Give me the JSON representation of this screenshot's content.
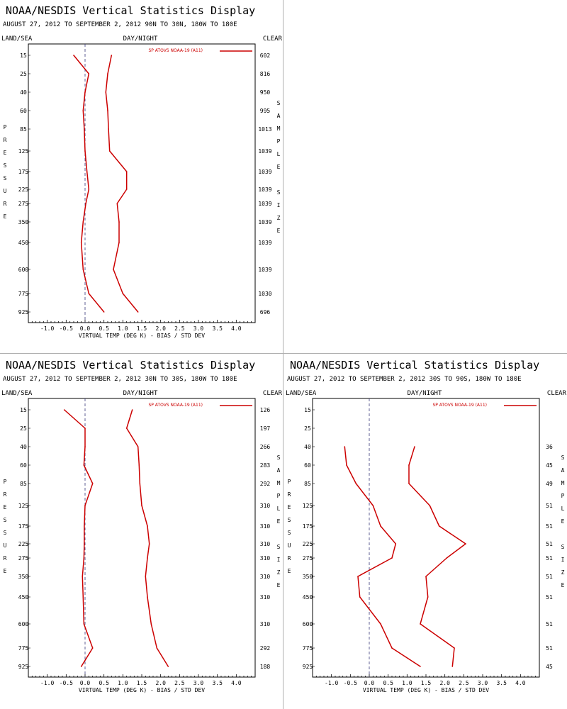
{
  "chart_data": [
    {
      "type": "line",
      "title": "NOAA/NESDIS Vertical Statistics Display",
      "subtitle": "AUGUST 27, 2012 TO SEPTEMBER 2, 2012  90N TO 30N, 180W TO 180E",
      "corner_left": "LAND/SEA",
      "corner_center": "DAY/NIGHT",
      "corner_right": "CLEAR",
      "ylabel_left": "PRESSURE",
      "ylabel_right": "SAMPLE SIZE",
      "xlabel": "VIRTUAL TEMP (DEG K) - BIAS / STD DEV",
      "legend": "SP ATOVS NOAA-19 (A11)",
      "xlim": [
        -1.5,
        4.5
      ],
      "x_ticks": [
        "-1.0",
        "-0.5",
        "0.0",
        "0.5",
        "1.0",
        "1.5",
        "2.0",
        "2.5",
        "3.0",
        "3.5",
        "4.0"
      ],
      "pressure_levels": [
        "15",
        "25",
        "40",
        "60",
        "85",
        "125",
        "175",
        "225",
        "275",
        "350",
        "450",
        "600",
        "775",
        "925"
      ],
      "sample_size": [
        "602",
        "816",
        "950",
        "995",
        "1013",
        "1039",
        "1039",
        "1039",
        "1039",
        "1039",
        "1039",
        "1039",
        "1030",
        "696"
      ],
      "series": [
        {
          "name": "BIAS",
          "values": [
            -0.3,
            0.1,
            0.0,
            -0.05,
            -0.02,
            0.0,
            0.05,
            0.1,
            0.02,
            -0.05,
            -0.1,
            -0.05,
            0.1,
            0.5
          ]
        },
        {
          "name": "STD DEV",
          "values": [
            0.7,
            0.6,
            0.55,
            0.6,
            0.62,
            0.65,
            1.1,
            1.1,
            0.85,
            0.9,
            0.9,
            0.75,
            1.0,
            1.4
          ]
        }
      ]
    },
    {
      "type": "line",
      "title": "NOAA/NESDIS Vertical Statistics Display",
      "subtitle": "AUGUST 27, 2012 TO SEPTEMBER 2, 2012  30N TO 30S, 180W TO 180E",
      "corner_left": "LAND/SEA",
      "corner_center": "DAY/NIGHT",
      "corner_right": "CLEAR",
      "ylabel_left": "PRESSURE",
      "ylabel_right": "SAMPLE SIZE",
      "xlabel": "VIRTUAL TEMP (DEG K) - BIAS / STD DEV",
      "legend": "SP ATOVS NOAA-19 (A11)",
      "xlim": [
        -1.5,
        4.5
      ],
      "x_ticks": [
        "-1.0",
        "-0.5",
        "0.0",
        "0.5",
        "1.0",
        "1.5",
        "2.0",
        "2.5",
        "3.0",
        "3.5",
        "4.0"
      ],
      "pressure_levels": [
        "15",
        "25",
        "40",
        "60",
        "85",
        "125",
        "175",
        "225",
        "275",
        "350",
        "450",
        "600",
        "775",
        "925"
      ],
      "sample_size": [
        "126",
        "197",
        "266",
        "283",
        "292",
        "310",
        "310",
        "310",
        "310",
        "310",
        "310",
        "310",
        "292",
        "188"
      ],
      "series": [
        {
          "name": "BIAS",
          "values": [
            -0.55,
            0.0,
            0.0,
            -0.03,
            0.2,
            0.0,
            -0.02,
            -0.02,
            -0.03,
            -0.07,
            -0.05,
            -0.03,
            0.2,
            -0.1
          ]
        },
        {
          "name": "STD DEV",
          "values": [
            1.25,
            1.1,
            1.4,
            1.43,
            1.45,
            1.5,
            1.65,
            1.7,
            1.65,
            1.6,
            1.65,
            1.75,
            1.9,
            2.2
          ]
        }
      ]
    },
    {
      "type": "line",
      "title": "NOAA/NESDIS Vertical Statistics Display",
      "subtitle": "AUGUST 27, 2012 TO SEPTEMBER 2, 2012  30S TO 90S, 180W TO 180E",
      "corner_left": "LAND/SEA",
      "corner_center": "DAY/NIGHT",
      "corner_right": "CLEAR",
      "ylabel_left": "PRESSURE",
      "ylabel_right": "SAMPLE SIZE",
      "xlabel": "VIRTUAL TEMP (DEG K) - BIAS / STD DEV",
      "legend": "SP ATOVS NOAA-19 (A11)",
      "xlim": [
        -1.5,
        4.5
      ],
      "x_ticks": [
        "-1.0",
        "-0.5",
        "0.0",
        "0.5",
        "1.0",
        "1.5",
        "2.0",
        "2.5",
        "3.0",
        "3.5",
        "4.0"
      ],
      "pressure_levels": [
        "15",
        "25",
        "40",
        "60",
        "85",
        "125",
        "175",
        "225",
        "275",
        "350",
        "450",
        "600",
        "775",
        "925"
      ],
      "sample_size": [
        "",
        "",
        "36",
        "45",
        "49",
        "51",
        "51",
        "51",
        "51",
        "51",
        "51",
        "51",
        "51",
        "45"
      ],
      "series": [
        {
          "name": "BIAS",
          "values": [
            null,
            null,
            -0.65,
            -0.6,
            -0.35,
            0.1,
            0.3,
            0.7,
            0.6,
            -0.3,
            -0.25,
            0.3,
            0.6,
            1.35
          ]
        },
        {
          "name": "STD DEV",
          "values": [
            null,
            null,
            1.2,
            1.05,
            1.05,
            1.6,
            1.85,
            2.55,
            2.05,
            1.5,
            1.55,
            1.35,
            2.25,
            2.2
          ]
        }
      ]
    }
  ],
  "colors": {
    "series": "#cc0000",
    "zero_line": "#3a3a7a",
    "axis": "#000000",
    "divider": "#b0b0b0"
  }
}
